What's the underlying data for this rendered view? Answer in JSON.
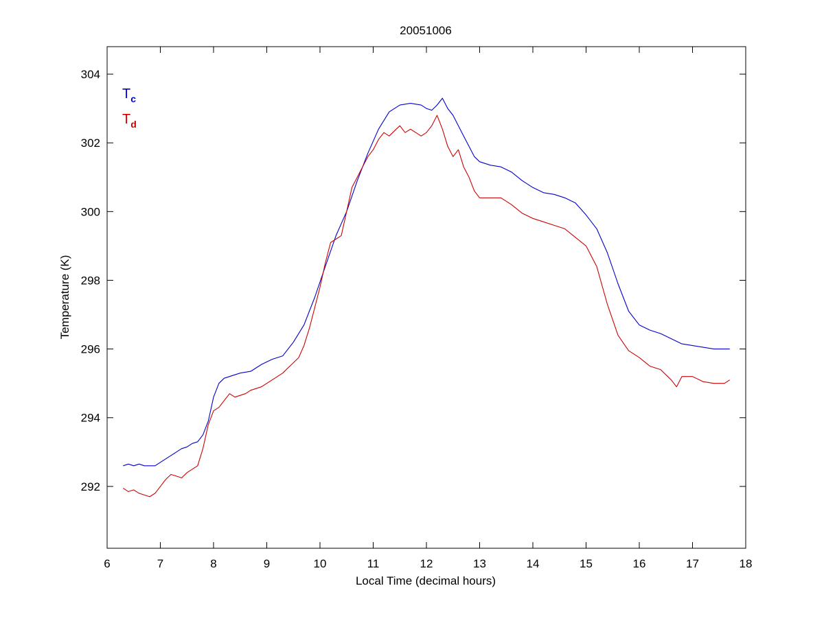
{
  "chart_data": {
    "type": "line",
    "title": "20051006",
    "xlabel": "Local Time (decimal hours)",
    "ylabel": "Temperature (K)",
    "xlim": [
      6,
      18
    ],
    "ylim": [
      290.2,
      304.8
    ],
    "xticks": [
      6,
      7,
      8,
      9,
      10,
      11,
      12,
      13,
      14,
      15,
      16,
      17,
      18
    ],
    "yticks": [
      292,
      294,
      296,
      298,
      300,
      302,
      304
    ],
    "grid": false,
    "legend_position": "top-left",
    "colors": {
      "Tc": "#0000cc",
      "Td": "#cc0000",
      "axes": "#000000"
    },
    "series": [
      {
        "legend_main": "T",
        "legend_sub": "c",
        "color": "#0000cc",
        "x": [
          6.3,
          6.4,
          6.5,
          6.6,
          6.7,
          6.8,
          6.9,
          7.0,
          7.1,
          7.2,
          7.3,
          7.4,
          7.5,
          7.6,
          7.7,
          7.8,
          7.9,
          8.0,
          8.1,
          8.2,
          8.3,
          8.5,
          8.7,
          8.9,
          9.1,
          9.3,
          9.5,
          9.7,
          9.9,
          10.1,
          10.3,
          10.5,
          10.7,
          10.9,
          11.1,
          11.3,
          11.5,
          11.7,
          11.9,
          12.0,
          12.1,
          12.2,
          12.3,
          12.4,
          12.5,
          12.6,
          12.7,
          12.8,
          12.9,
          13.0,
          13.2,
          13.4,
          13.6,
          13.8,
          14.0,
          14.2,
          14.4,
          14.6,
          14.8,
          15.0,
          15.2,
          15.4,
          15.6,
          15.8,
          16.0,
          16.2,
          16.4,
          16.6,
          16.8,
          17.0,
          17.2,
          17.4,
          17.6,
          17.7
        ],
        "y": [
          292.6,
          292.65,
          292.6,
          292.65,
          292.6,
          292.6,
          292.6,
          292.7,
          292.8,
          292.9,
          293.0,
          293.1,
          293.15,
          293.25,
          293.3,
          293.5,
          293.9,
          294.6,
          295.0,
          295.15,
          295.2,
          295.3,
          295.35,
          295.55,
          295.7,
          295.8,
          296.2,
          296.7,
          297.5,
          298.4,
          299.3,
          300.0,
          300.9,
          301.7,
          302.4,
          302.9,
          303.1,
          303.15,
          303.1,
          303.0,
          302.95,
          303.1,
          303.3,
          303.0,
          302.8,
          302.5,
          302.2,
          301.9,
          301.6,
          301.45,
          301.35,
          301.3,
          301.15,
          300.9,
          300.7,
          300.55,
          300.5,
          300.4,
          300.25,
          299.9,
          299.5,
          298.8,
          297.9,
          297.1,
          296.7,
          296.55,
          296.45,
          296.3,
          296.15,
          296.1,
          296.05,
          296.0,
          296.0,
          296.0
        ]
      },
      {
        "legend_main": "T",
        "legend_sub": "d",
        "color": "#cc0000",
        "x": [
          6.3,
          6.4,
          6.5,
          6.6,
          6.7,
          6.8,
          6.9,
          7.0,
          7.1,
          7.2,
          7.3,
          7.4,
          7.5,
          7.6,
          7.7,
          7.8,
          7.9,
          8.0,
          8.1,
          8.2,
          8.3,
          8.4,
          8.5,
          8.6,
          8.7,
          8.8,
          8.9,
          9.0,
          9.1,
          9.2,
          9.3,
          9.4,
          9.5,
          9.6,
          9.7,
          9.8,
          9.9,
          10.0,
          10.1,
          10.2,
          10.3,
          10.4,
          10.5,
          10.6,
          10.7,
          10.8,
          10.9,
          11.0,
          11.1,
          11.2,
          11.3,
          11.4,
          11.5,
          11.6,
          11.7,
          11.8,
          11.9,
          12.0,
          12.1,
          12.2,
          12.3,
          12.4,
          12.5,
          12.6,
          12.7,
          12.8,
          12.9,
          13.0,
          13.2,
          13.4,
          13.6,
          13.8,
          14.0,
          14.2,
          14.4,
          14.6,
          14.8,
          15.0,
          15.2,
          15.4,
          15.6,
          15.8,
          16.0,
          16.2,
          16.4,
          16.6,
          16.7,
          16.8,
          17.0,
          17.2,
          17.4,
          17.6,
          17.7
        ],
        "y": [
          291.95,
          291.85,
          291.9,
          291.8,
          291.75,
          291.7,
          291.8,
          292.0,
          292.2,
          292.35,
          292.3,
          292.25,
          292.4,
          292.5,
          292.6,
          293.1,
          293.8,
          294.2,
          294.3,
          294.5,
          294.7,
          294.6,
          294.65,
          294.7,
          294.8,
          294.85,
          294.9,
          295.0,
          295.1,
          295.2,
          295.3,
          295.45,
          295.6,
          295.75,
          296.1,
          296.6,
          297.2,
          297.8,
          298.5,
          299.1,
          299.2,
          299.3,
          300.0,
          300.7,
          301.0,
          301.3,
          301.6,
          301.8,
          302.1,
          302.3,
          302.2,
          302.35,
          302.5,
          302.3,
          302.4,
          302.3,
          302.2,
          302.3,
          302.5,
          302.8,
          302.4,
          301.9,
          301.6,
          301.8,
          301.3,
          301.0,
          300.6,
          300.4,
          300.4,
          300.4,
          300.2,
          299.95,
          299.8,
          299.7,
          299.6,
          299.5,
          299.25,
          299.0,
          298.4,
          297.3,
          296.4,
          295.95,
          295.75,
          295.5,
          295.4,
          295.1,
          294.9,
          295.2,
          295.2,
          295.05,
          295.0,
          295.0,
          295.1
        ]
      }
    ]
  }
}
